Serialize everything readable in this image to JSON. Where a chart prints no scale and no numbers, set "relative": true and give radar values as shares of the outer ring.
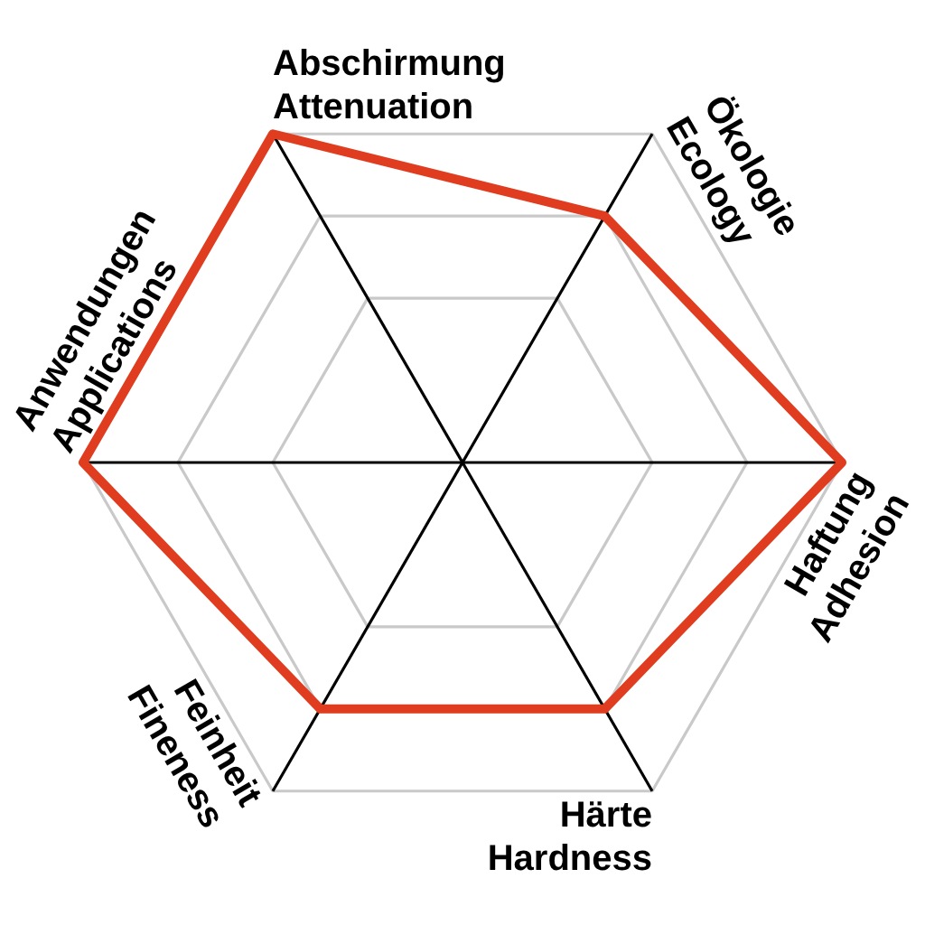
{
  "chart_data": {
    "type": "radar",
    "categories": [
      "Ökologie\nEcology",
      "Haftung\nAdhesion",
      "Härte\nHardness",
      "Feinheit\nFineness",
      "Anwendungen\nApplications",
      "Abschirmung\nAttenuation"
    ],
    "relative": true,
    "series": [
      {
        "color": "#e03c1f",
        "values": [
          0.75,
          1,
          0.75,
          0.75,
          1,
          1
        ]
      }
    ],
    "grid": true,
    "legend": false,
    "marker": "none"
  }
}
